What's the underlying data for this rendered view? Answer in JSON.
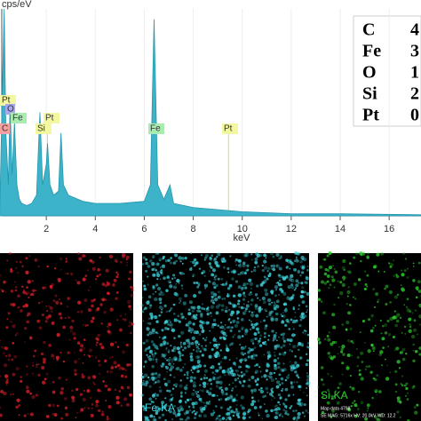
{
  "chart_data": {
    "type": "area",
    "y_label": "cps/eV",
    "x_label": "keV",
    "x": [
      0.1,
      0.2,
      0.28,
      0.35,
      0.45,
      0.52,
      0.6,
      0.7,
      0.8,
      0.9,
      1.0,
      1.2,
      1.4,
      1.6,
      1.74,
      1.85,
      2.0,
      2.05,
      2.15,
      2.3,
      2.5,
      2.6,
      2.7,
      2.9,
      3.5,
      4,
      5,
      6,
      6.25,
      6.4,
      6.55,
      6.8,
      7.05,
      7.2,
      8,
      9,
      10,
      12,
      14,
      17.3
    ],
    "values": [
      2,
      60,
      100,
      40,
      15,
      55,
      20,
      45,
      15,
      8,
      6,
      5,
      6,
      10,
      50,
      15,
      25,
      35,
      15,
      10,
      12,
      40,
      15,
      10,
      7,
      6,
      6,
      7,
      15,
      95,
      15,
      8,
      15,
      6,
      4,
      3,
      2,
      1,
      1,
      0.5
    ],
    "color": "#3db3c9",
    "xlim": [
      0,
      17.3
    ],
    "ylim": [
      0,
      100
    ],
    "xticks": [
      2,
      4,
      6,
      8,
      10,
      12,
      14,
      16
    ],
    "markers": [
      {
        "label": "Pt",
        "x": 0.2,
        "color": "#f3f7a0"
      },
      {
        "label": "O",
        "x": 0.52,
        "color": "#a7a7f0"
      },
      {
        "label": "Fe",
        "x": 0.7,
        "color": "#a8ecb0"
      },
      {
        "label": "C",
        "x": 0.28,
        "color": "#f7a0a0"
      },
      {
        "label": "Si",
        "x": 1.74,
        "color": "#f3f7a0"
      },
      {
        "label": "Pt",
        "x": 2.05,
        "color": "#f3f7a0"
      },
      {
        "label": "Fe",
        "x": 6.4,
        "color": "#a8ecb0"
      },
      {
        "label": "Pt",
        "x": 9.44,
        "color": "#f3f7a0"
      }
    ],
    "legend_rows": [
      [
        "C",
        "4"
      ],
      [
        "Fe",
        "3"
      ],
      [
        "O",
        "1"
      ],
      [
        "Si",
        "2"
      ],
      [
        "Pt",
        "0"
      ]
    ]
  },
  "maps": [
    {
      "color": "#e0202a",
      "label": null
    },
    {
      "color": "#3fd6e0",
      "label": "Fe-KA"
    },
    {
      "color": "#30d030",
      "label": "Si-KA",
      "info": [
        "Map data 4798",
        "SE MAG: 5716x HV: 20.0kV WD: 12.2"
      ]
    }
  ]
}
